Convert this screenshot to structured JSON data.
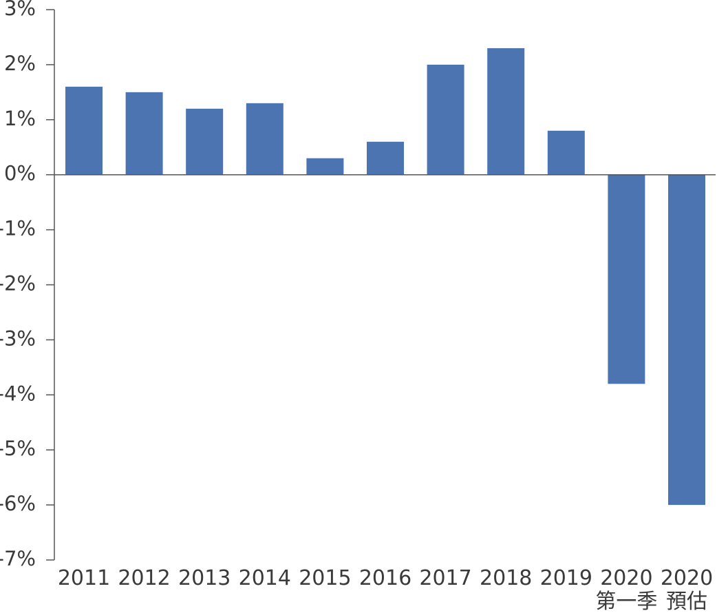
{
  "chart_data": {
    "type": "bar",
    "title": "",
    "xlabel": "",
    "ylabel": "",
    "categories": [
      "2011",
      "2012",
      "2013",
      "2014",
      "2015",
      "2016",
      "2017",
      "2018",
      "2019",
      "2020",
      "2020"
    ],
    "category_sublabels": [
      "",
      "",
      "",
      "",
      "",
      "",
      "",
      "",
      "",
      "第一季",
      "預估"
    ],
    "values": [
      1.6,
      1.5,
      1.2,
      1.3,
      0.3,
      0.6,
      2.0,
      2.3,
      0.8,
      -3.8,
      -6.0
    ],
    "unit": "%",
    "ylim": [
      -7,
      3
    ],
    "yticks": [
      3,
      2,
      1,
      0,
      -1,
      -2,
      -3,
      -4,
      -5,
      -6,
      -7
    ],
    "ytick_labels": [
      "3%",
      "2%",
      "1%",
      "0%",
      "-1%",
      "-2%",
      "-3%",
      "-4%",
      "-5%",
      "-6%",
      "-7%"
    ],
    "grid": false,
    "legend": "none",
    "bar_color": "#4b74b0",
    "axis_color": "#555555"
  }
}
